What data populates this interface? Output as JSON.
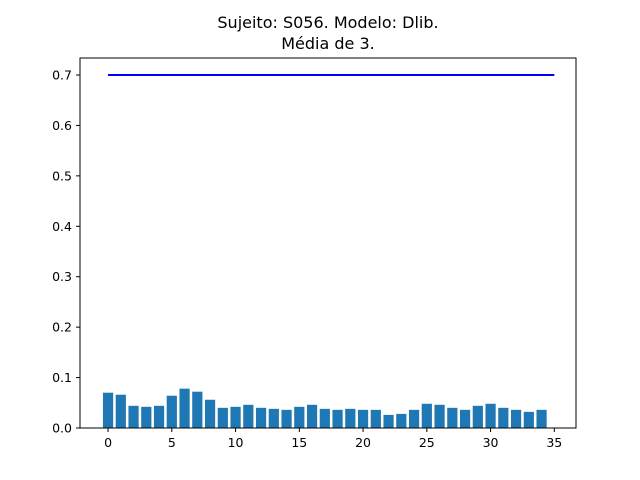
{
  "chart_data": {
    "type": "bar",
    "title": "Sujeito: S056. Modelo: Dlib.",
    "subtitle": "Média de 3.",
    "x": [
      0,
      1,
      2,
      3,
      4,
      5,
      6,
      7,
      8,
      9,
      10,
      11,
      12,
      13,
      14,
      15,
      16,
      17,
      18,
      19,
      20,
      21,
      22,
      23,
      24,
      25,
      26,
      27,
      28,
      29,
      30,
      31,
      32,
      33,
      34
    ],
    "values": [
      0.07,
      0.066,
      0.044,
      0.042,
      0.044,
      0.064,
      0.078,
      0.072,
      0.056,
      0.04,
      0.042,
      0.046,
      0.04,
      0.038,
      0.036,
      0.042,
      0.046,
      0.038,
      0.036,
      0.038,
      0.036,
      0.036,
      0.026,
      0.028,
      0.036,
      0.048,
      0.046,
      0.04,
      0.036,
      0.044,
      0.048,
      0.04,
      0.036,
      0.032,
      0.036
    ],
    "threshold_line": {
      "x": [
        0,
        35
      ],
      "y": 0.7
    },
    "xlim": [
      -2.2,
      36.7
    ],
    "ylim": [
      0,
      0.7
    ],
    "xticks": [
      0,
      5,
      10,
      15,
      20,
      25,
      30,
      35
    ],
    "yticks": [
      "0.0",
      "0.1",
      "0.2",
      "0.3",
      "0.4",
      "0.5",
      "0.6",
      "0.7"
    ],
    "colors": {
      "bars": "#1f77b4",
      "line": "#0000ff"
    },
    "grid": false,
    "xlabel": "",
    "ylabel": ""
  }
}
